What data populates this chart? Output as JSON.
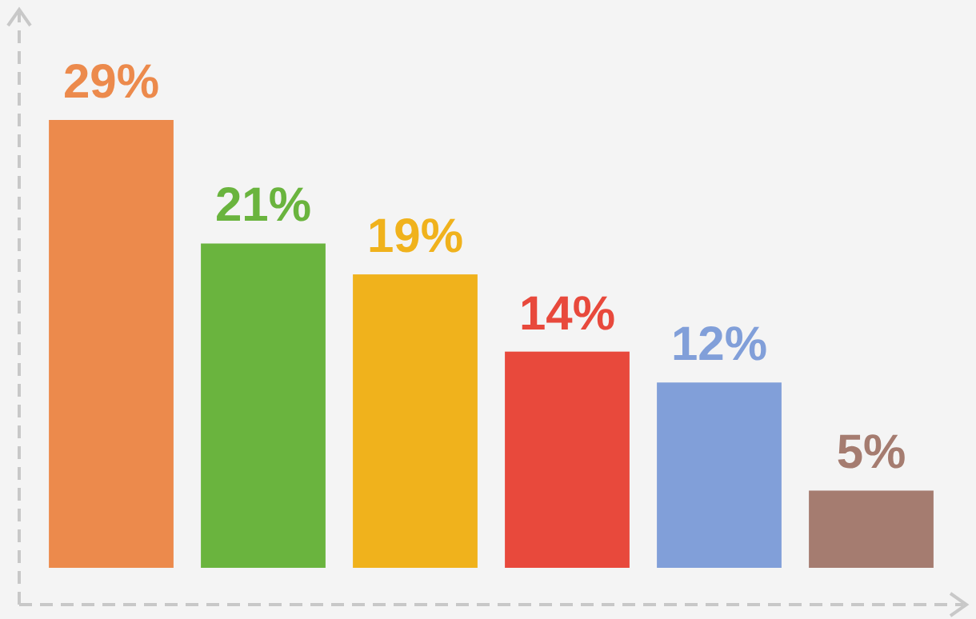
{
  "chart_data": {
    "type": "bar",
    "categories": [
      null,
      null,
      null,
      null,
      null,
      null
    ],
    "values": [
      29,
      21,
      19,
      14,
      12,
      5
    ],
    "colors": [
      "#ec8a4c",
      "#6ab43e",
      "#f0b21c",
      "#e8493c",
      "#819fd9",
      "#a57c70"
    ],
    "value_labels": [
      "29%",
      "21%",
      "19%",
      "14%",
      "12%",
      "5%"
    ]
  }
}
